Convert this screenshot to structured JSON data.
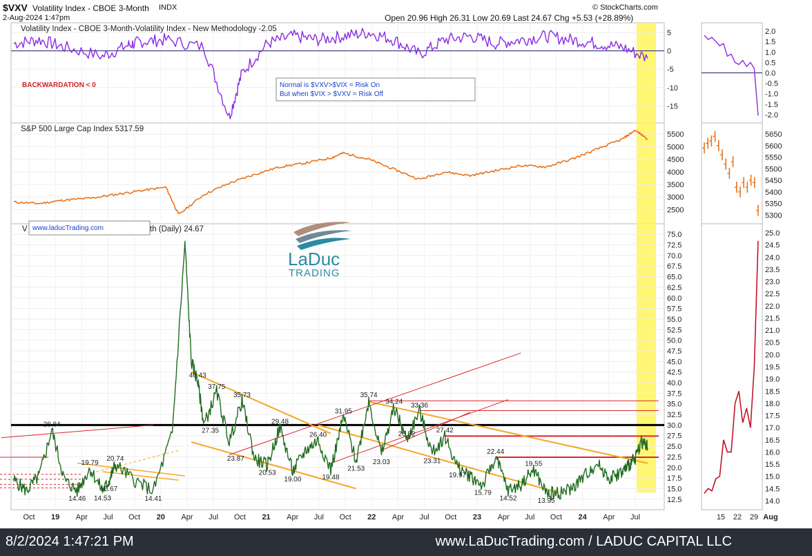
{
  "header": {
    "symbol": "$VXV",
    "name": "Volatility Index - CBOE 3-Month",
    "exchange": "INDX",
    "date": "2-Aug-2024 1:47pm",
    "credit": "© StockCharts.com",
    "quote": "Open 20.96  High 26.31  Low 20.69  Last 24.67  Chg +5.53 (+28.89%)"
  },
  "panels": {
    "spread_title": "Volatility Index - CBOE 3-Month-Volatility Index - New Methodology -2.05",
    "backwardation_label": "BACKWARDATION < 0",
    "note_line1": "Normal is $VXV>$VIX = Risk On",
    "note_line2": "But when $VIX > $VXV = Risk Off",
    "spx_title": "S&P 500 Large Cap Index 5317.59",
    "main_title_left": "V",
    "main_title_right": "th (Daily) 24.67",
    "watermark_url": "www.laducTrading.com",
    "logo_word": "LaDuc",
    "logo_sub": "TRADING"
  },
  "footer": {
    "timestamp": "8/2/2024 1:47:21 PM",
    "site": "www.LaDucTrading.com / LADUC CAPITAL LLC"
  },
  "colors": {
    "spread_line": "#8a2be2",
    "spx_line": "#e8731c",
    "vxv_line": "#1f6b1f",
    "vxv_recent": "#c0152a",
    "channel": "#f5a623",
    "resistance": "#d9262e",
    "highlight": "#fff45c"
  },
  "chart_data": [
    {
      "type": "line",
      "name": "spread",
      "title": "Volatility Index - CBOE 3-Month-Volatility Index - New Methodology -2.05",
      "x_ticks": [
        "Oct",
        "19",
        "Apr",
        "Jul",
        "Oct",
        "20",
        "Apr",
        "Jul",
        "Oct",
        "21",
        "Apr",
        "Jul",
        "Oct",
        "22",
        "Apr",
        "Jul",
        "Oct",
        "23",
        "Apr",
        "Jul",
        "Oct",
        "24",
        "Apr",
        "Jul"
      ],
      "y_ticks": [
        5,
        0,
        -5,
        -10,
        -15
      ],
      "ylim": [
        -18.5,
        6.5
      ],
      "reference_line": 0,
      "annotations": [
        "BACKWARDATION < 0",
        "Normal is $VXV>$VIX = Risk On",
        "But when $VIX > $VXV = Risk Off"
      ],
      "x": [
        0,
        4,
        8,
        14,
        18,
        20,
        24,
        30,
        34,
        36,
        40,
        44,
        48,
        52,
        56,
        60,
        64,
        68,
        72,
        76,
        80,
        84,
        88,
        92,
        96,
        100
      ],
      "values": [
        2,
        3,
        1,
        -1.5,
        1.5,
        2.5,
        3,
        1,
        -18,
        -6,
        2,
        4,
        3,
        4,
        5,
        3,
        -1,
        3,
        4,
        2,
        3,
        4,
        3,
        2,
        1,
        -2.05
      ]
    },
    {
      "type": "line",
      "name": "S&P 500 Large Cap Index",
      "title": "S&P 500 Large Cap Index 5317.59",
      "y_ticks": [
        5500,
        5000,
        4500,
        4000,
        3500,
        3000,
        2500
      ],
      "ylim": [
        2100,
        5780
      ],
      "x": [
        0,
        4,
        8,
        12,
        16,
        20,
        24,
        26,
        30,
        34,
        38,
        42,
        46,
        50,
        52,
        56,
        60,
        64,
        68,
        72,
        76,
        80,
        84,
        88,
        92,
        96,
        98,
        100
      ],
      "values": [
        2800,
        2740,
        2880,
        2950,
        3100,
        3250,
        3390,
        2300,
        3100,
        3550,
        3900,
        4200,
        4350,
        4550,
        4750,
        4500,
        4100,
        3700,
        4000,
        3850,
        4050,
        4250,
        4200,
        4500,
        4900,
        5300,
        5650,
        5317.59
      ]
    },
    {
      "type": "line",
      "name": "$VXV Volatility Index - CBOE 3-Month (Daily)",
      "last": 24.67,
      "y_ticks": [
        75.0,
        72.5,
        70.0,
        67.5,
        65.0,
        62.5,
        60.0,
        57.5,
        55.0,
        52.5,
        50.0,
        47.5,
        45.0,
        42.5,
        40.0,
        37.5,
        35.0,
        32.5,
        30.0,
        27.5,
        25.0,
        22.5,
        20.0,
        17.5,
        15.0,
        12.5
      ],
      "ylim": [
        11,
        76.5
      ],
      "x_ticks": [
        "Oct",
        "19",
        "Apr",
        "Jul",
        "Oct",
        "20",
        "Apr",
        "Jul",
        "Oct",
        "21",
        "Apr",
        "Jul",
        "Oct",
        "22",
        "Apr",
        "Jul",
        "Oct",
        "23",
        "Apr",
        "Jul",
        "Oct",
        "24",
        "Apr",
        "Jul"
      ],
      "x": [
        0,
        2,
        4,
        6,
        8,
        10,
        12,
        14,
        15,
        16,
        19,
        22,
        25,
        27,
        28,
        29,
        30,
        32,
        34,
        36,
        38,
        40,
        42,
        44,
        46,
        48,
        50,
        52,
        54,
        56,
        58,
        60,
        62,
        64,
        66,
        68,
        70,
        72,
        74,
        76,
        78,
        80,
        82,
        84,
        86,
        88,
        90,
        92,
        94,
        96,
        97,
        98,
        99,
        100
      ],
      "values": [
        17,
        14.5,
        18,
        28.84,
        17,
        14.46,
        19.79,
        14.53,
        16.67,
        20.74,
        17,
        14.41,
        28,
        73,
        45,
        40.43,
        30,
        37.75,
        26,
        35.73,
        22,
        20.53,
        29.48,
        19,
        24,
        26.4,
        19.48,
        31.95,
        21.53,
        35.74,
        23.03,
        34.24,
        26.52,
        33.36,
        23.31,
        27.42,
        19.97,
        18,
        15.79,
        22.44,
        14.52,
        16,
        19.55,
        13.95,
        14,
        15,
        18,
        21,
        17.5,
        19,
        20.5,
        22,
        26.31,
        24.67
      ],
      "point_labels": [
        {
          "x": 6,
          "y": 28.84,
          "label": "28.84"
        },
        {
          "x": 10,
          "y": 14.46,
          "label": "14.46"
        },
        {
          "x": 12,
          "y": 19.79,
          "label": "19.79"
        },
        {
          "x": 14,
          "y": 14.53,
          "label": "14.53"
        },
        {
          "x": 15,
          "y": 16.67,
          "label": "16.67"
        },
        {
          "x": 16,
          "y": 20.74,
          "label": "20.74"
        },
        {
          "x": 22,
          "y": 14.41,
          "label": "14.41"
        },
        {
          "x": 29,
          "y": 40.43,
          "label": "40.43"
        },
        {
          "x": 32,
          "y": 37.75,
          "label": "37.75"
        },
        {
          "x": 36,
          "y": 35.73,
          "label": "35.73"
        },
        {
          "x": 31,
          "y": 27.35,
          "label": "27.35"
        },
        {
          "x": 35,
          "y": 23.87,
          "label": "23.87"
        },
        {
          "x": 40,
          "y": 20.53,
          "label": "20.53"
        },
        {
          "x": 42,
          "y": 29.48,
          "label": "29.48"
        },
        {
          "x": 44,
          "y": 19.0,
          "label": "19.00"
        },
        {
          "x": 48,
          "y": 26.4,
          "label": "26.40"
        },
        {
          "x": 50,
          "y": 19.48,
          "label": "19.48"
        },
        {
          "x": 52,
          "y": 31.95,
          "label": "31.95"
        },
        {
          "x": 54,
          "y": 21.53,
          "label": "21.53"
        },
        {
          "x": 56,
          "y": 35.74,
          "label": "35.74"
        },
        {
          "x": 58,
          "y": 23.03,
          "label": "23.03"
        },
        {
          "x": 60,
          "y": 34.24,
          "label": "34.24"
        },
        {
          "x": 62,
          "y": 26.52,
          "label": "26.52"
        },
        {
          "x": 64,
          "y": 33.36,
          "label": "33.36"
        },
        {
          "x": 66,
          "y": 23.31,
          "label": "23.31"
        },
        {
          "x": 68,
          "y": 27.42,
          "label": "27.42"
        },
        {
          "x": 70,
          "y": 19.97,
          "label": "19.97"
        },
        {
          "x": 74,
          "y": 15.79,
          "label": "15.79"
        },
        {
          "x": 76,
          "y": 22.44,
          "label": "22.44"
        },
        {
          "x": 78,
          "y": 14.52,
          "label": "14.52"
        },
        {
          "x": 82,
          "y": 19.55,
          "label": "19.55"
        },
        {
          "x": 84,
          "y": 13.95,
          "label": "13.95"
        }
      ],
      "horizontal_levels": [
        30,
        35.7,
        33.4,
        27.4,
        22.4
      ]
    },
    {
      "type": "line",
      "name": "spread (recent)",
      "y_ticks": [
        2.0,
        1.5,
        1.0,
        0.5,
        0.0,
        -0.5,
        -1.0,
        -1.5,
        -2.0
      ],
      "ylim": [
        -2.2,
        2.2
      ],
      "values": [
        1.8,
        1.6,
        1.7,
        1.5,
        1.3,
        1.4,
        0.8,
        0.9,
        0.5,
        0.4,
        0.6,
        0.3,
        0.5,
        0.2,
        -2.05
      ]
    },
    {
      "type": "line",
      "name": "S&P 500 (recent)",
      "y_ticks": [
        5650,
        5600,
        5550,
        5500,
        5450,
        5400,
        5350,
        5300
      ],
      "ylim": [
        5280,
        5680
      ],
      "values": [
        5590,
        5610,
        5620,
        5640,
        5600,
        5560,
        5520,
        5480,
        5530,
        5420,
        5400,
        5440,
        5420,
        5450,
        5440,
        5320
      ]
    },
    {
      "type": "line",
      "name": "$VXV (recent)",
      "x_ticks": [
        "15",
        "22",
        "29",
        "Aug"
      ],
      "y_ticks": [
        25.0,
        24.5,
        24.0,
        23.5,
        23.0,
        22.5,
        22.0,
        21.5,
        21.0,
        20.5,
        20.0,
        19.5,
        19.0,
        18.5,
        18.0,
        17.5,
        17.0,
        16.5,
        16.0,
        15.5,
        15.0,
        14.5,
        14.0
      ],
      "ylim": [
        13.8,
        25.2
      ],
      "values": [
        14.3,
        14.5,
        14.4,
        14.9,
        15.0,
        16.5,
        16.0,
        16.0,
        18.0,
        18.5,
        17.2,
        17.8,
        17.0,
        19.5,
        24.67
      ]
    }
  ]
}
